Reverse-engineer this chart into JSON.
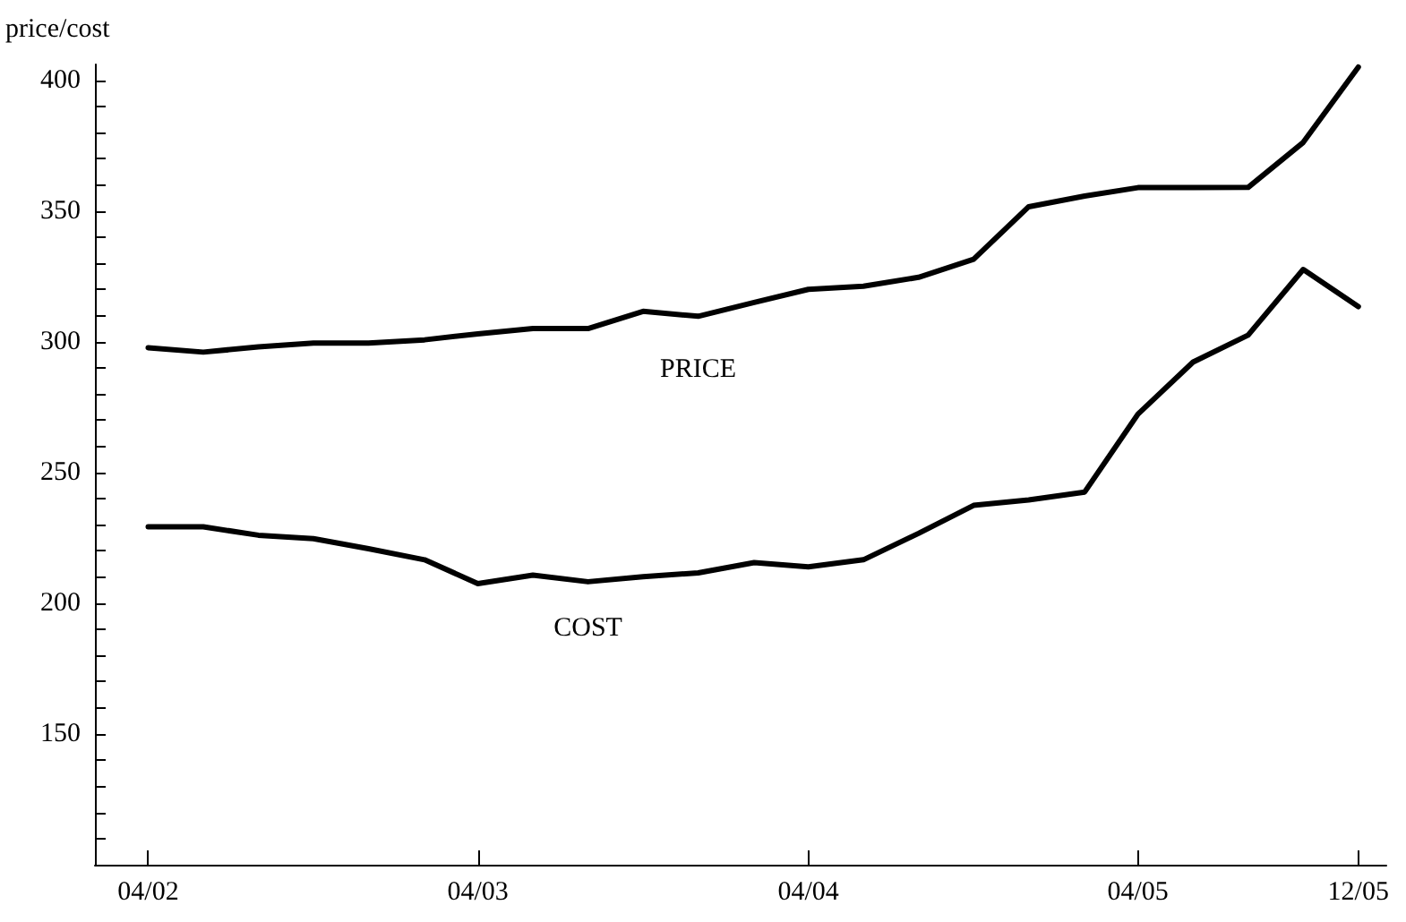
{
  "chart_data": {
    "type": "line",
    "ylabel": "price/cost",
    "x": [
      "2002-04",
      "2002-06",
      "2002-08",
      "2002-10",
      "2002-12",
      "2003-02",
      "2003-04",
      "2003-06",
      "2003-08",
      "2003-10",
      "2003-12",
      "2004-02",
      "2004-04",
      "2004-06",
      "2004-08",
      "2004-10",
      "2004-12",
      "2005-02",
      "2005-04",
      "2005-06",
      "2005-08",
      "2005-10",
      "2005-12"
    ],
    "series": [
      {
        "name": "PRICE",
        "color": "#000000",
        "values": [
          297.7,
          296,
          298,
          299.5,
          299.5,
          300.7,
          303,
          305,
          305,
          311.6,
          309.7,
          315,
          320,
          321.2,
          324.6,
          331.5,
          351.6,
          355.7,
          358.9,
          358.9,
          359,
          376.2,
          405
        ]
      },
      {
        "name": "COST",
        "color": "#000000",
        "values": [
          229.2,
          229.2,
          226,
          224.7,
          220.8,
          216.6,
          207.5,
          210.7,
          208.2,
          210.1,
          211.6,
          215.5,
          213.9,
          216.6,
          226.7,
          237.4,
          239.5,
          242.5,
          272.3,
          292.2,
          302.5,
          327.6,
          313.4
        ]
      }
    ],
    "xlim": [
      "2002-02",
      "2006-01"
    ],
    "xticks": [
      {
        "value": "2002-04",
        "label": "04/02"
      },
      {
        "value": "2003-04",
        "label": "04/03"
      },
      {
        "value": "2004-04",
        "label": "04/04"
      },
      {
        "value": "2005-04",
        "label": "04/05"
      },
      {
        "value": "2005-12",
        "label": "12/05"
      }
    ],
    "ylim": [
      100,
      406
    ],
    "yticks": [
      {
        "value": 110,
        "label": null
      },
      {
        "value": 120,
        "label": null
      },
      {
        "value": 130,
        "label": null
      },
      {
        "value": 140,
        "label": null
      },
      150,
      {
        "value": 160,
        "label": null
      },
      {
        "value": 170,
        "label": null
      },
      {
        "value": 180,
        "label": null
      },
      {
        "value": 190,
        "label": null
      },
      200,
      {
        "value": 210,
        "label": null
      },
      {
        "value": 220,
        "label": null
      },
      {
        "value": 230,
        "label": null
      },
      {
        "value": 240,
        "label": null
      },
      250,
      {
        "value": 260,
        "label": null
      },
      {
        "value": 270,
        "label": null
      },
      {
        "value": 280,
        "label": null
      },
      {
        "value": 290,
        "label": null
      },
      300,
      {
        "value": 310,
        "label": null
      },
      {
        "value": 320,
        "label": null
      },
      {
        "value": 330,
        "label": null
      },
      {
        "value": 340,
        "label": null
      },
      350,
      {
        "value": 360,
        "label": null
      },
      {
        "value": 370,
        "label": null
      },
      {
        "value": 380,
        "label": null
      },
      {
        "value": 390,
        "label": null
      },
      400
    ],
    "grid": false,
    "legend": false,
    "marker": "none",
    "line_style": "solid"
  }
}
